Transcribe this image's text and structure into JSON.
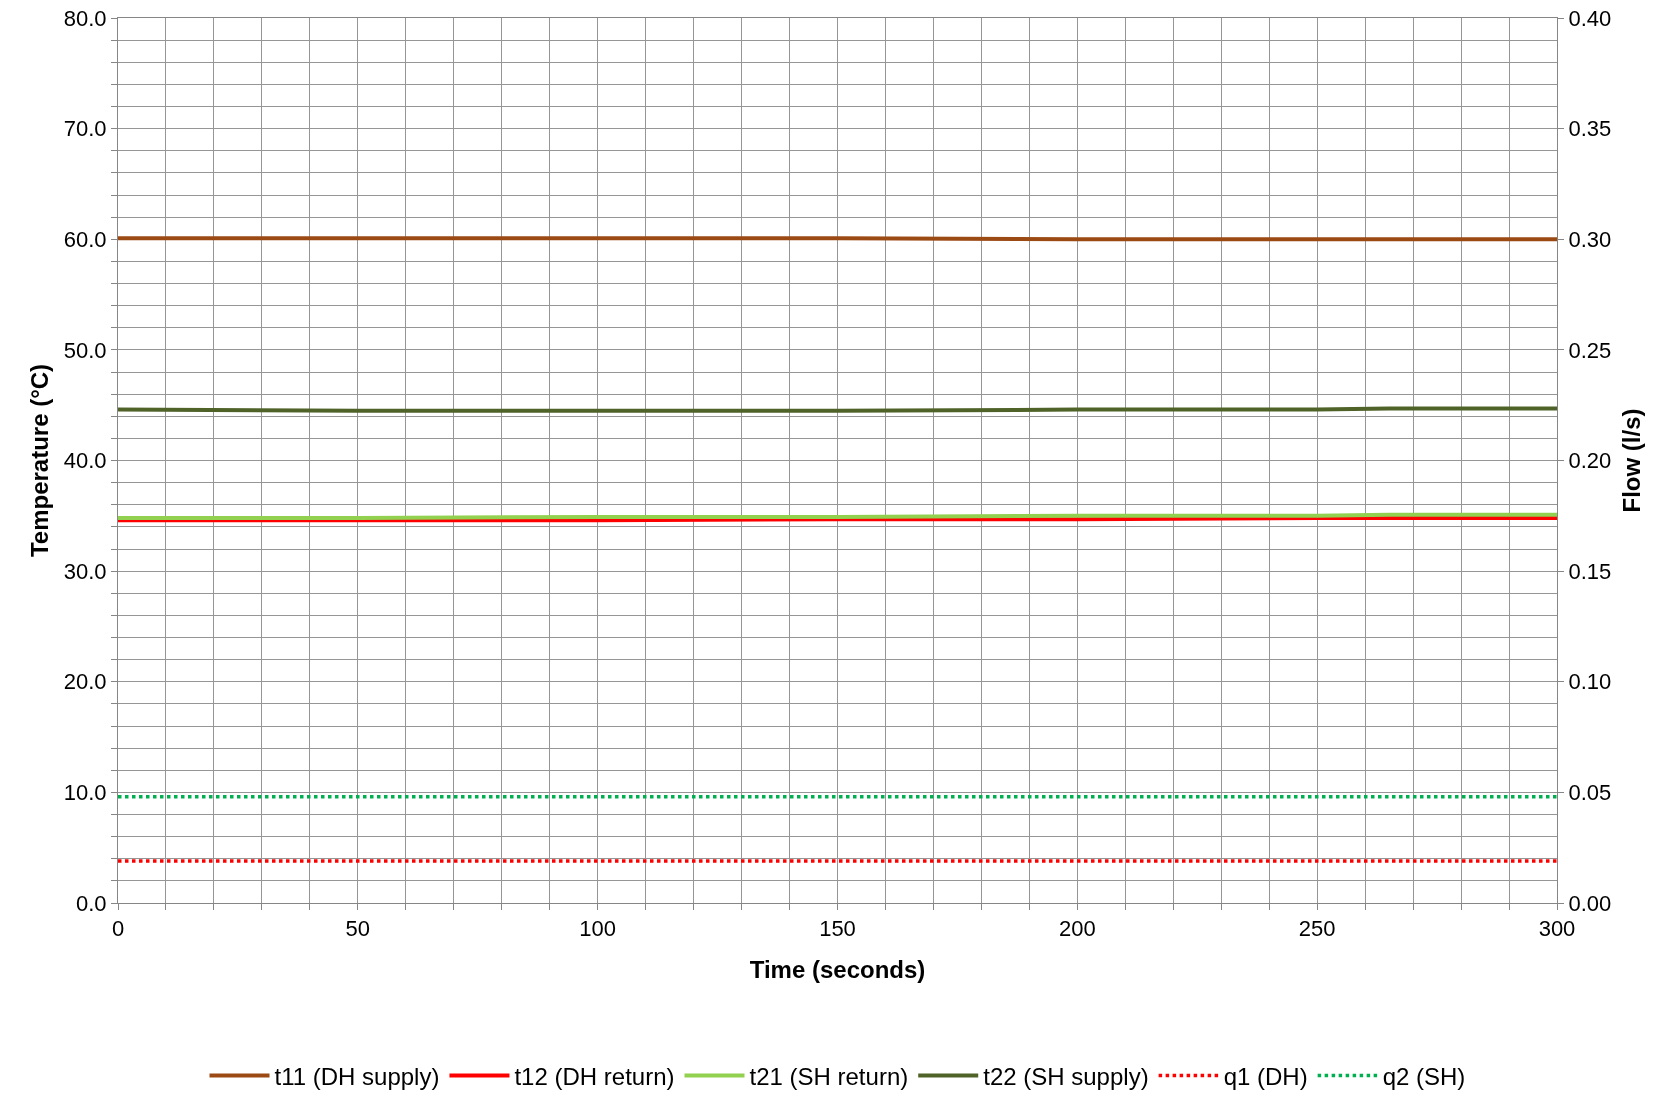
{
  "chart_data": {
    "type": "line",
    "xlabel": "Time (seconds)",
    "ylabel": "Temperature (°C)",
    "y2label": "Flow (l/s)",
    "x": [
      0,
      50,
      100,
      150,
      200,
      250,
      265,
      300
    ],
    "series": [
      {
        "name": "t11 (DH supply)",
        "color": "#9c4a14",
        "values": [
          60.1,
          60.1,
          60.1,
          60.1,
          60.0,
          60.0,
          60.0,
          60.0
        ]
      },
      {
        "name": "t12 (DH return)",
        "color": "#ff0000",
        "values": [
          34.6,
          34.6,
          34.6,
          34.7,
          34.7,
          34.8,
          34.8,
          34.8
        ]
      },
      {
        "name": "t21 (SH return)",
        "color": "#92d050",
        "values": [
          34.8,
          34.8,
          34.9,
          34.9,
          35.0,
          35.0,
          35.1,
          35.1
        ]
      },
      {
        "name": "t22 (SH supply)",
        "color": "#4f6228",
        "values": [
          44.6,
          44.5,
          44.5,
          44.5,
          44.6,
          44.6,
          44.7,
          44.7
        ]
      },
      {
        "name": "q1 (DH)",
        "color": "#ff0000",
        "line_style": "dotted",
        "axis": "y2",
        "values": [
          0.019,
          0.019,
          0.019,
          0.019,
          0.019,
          0.019,
          0.019,
          0.019
        ]
      },
      {
        "name": "q2 (SH)",
        "color": "#00b050",
        "line_style": "dotted",
        "axis": "y2",
        "values": [
          0.048,
          0.048,
          0.048,
          0.048,
          0.048,
          0.048,
          0.048,
          0.048
        ]
      }
    ],
    "xlim": [
      0,
      300
    ],
    "xticks": [
      0,
      {
        "value": 10,
        "label": null
      },
      {
        "value": 20,
        "label": null
      },
      {
        "value": 30,
        "label": null
      },
      {
        "value": 40,
        "label": null
      },
      50,
      {
        "value": 60,
        "label": null
      },
      {
        "value": 70,
        "label": null
      },
      {
        "value": 80,
        "label": null
      },
      {
        "value": 90,
        "label": null
      },
      100,
      {
        "value": 110,
        "label": null
      },
      {
        "value": 120,
        "label": null
      },
      {
        "value": 130,
        "label": null
      },
      {
        "value": 140,
        "label": null
      },
      150,
      {
        "value": 160,
        "label": null
      },
      {
        "value": 170,
        "label": null
      },
      {
        "value": 180,
        "label": null
      },
      {
        "value": 190,
        "label": null
      },
      200,
      {
        "value": 210,
        "label": null
      },
      {
        "value": 220,
        "label": null
      },
      {
        "value": 230,
        "label": null
      },
      {
        "value": 240,
        "label": null
      },
      250,
      {
        "value": 260,
        "label": null
      },
      {
        "value": 270,
        "label": null
      },
      {
        "value": 280,
        "label": null
      },
      {
        "value": 290,
        "label": null
      },
      300
    ],
    "ylim": [
      0,
      80
    ],
    "yticks": [
      {
        "value": 0,
        "label": "0.0"
      },
      {
        "value": 2,
        "label": null
      },
      {
        "value": 4,
        "label": null
      },
      {
        "value": 6,
        "label": null
      },
      {
        "value": 8,
        "label": null
      },
      {
        "value": 10,
        "label": "10.0"
      },
      {
        "value": 12,
        "label": null
      },
      {
        "value": 14,
        "label": null
      },
      {
        "value": 16,
        "label": null
      },
      {
        "value": 18,
        "label": null
      },
      {
        "value": 20,
        "label": "20.0"
      },
      {
        "value": 22,
        "label": null
      },
      {
        "value": 24,
        "label": null
      },
      {
        "value": 26,
        "label": null
      },
      {
        "value": 28,
        "label": null
      },
      {
        "value": 30,
        "label": "30.0"
      },
      {
        "value": 32,
        "label": null
      },
      {
        "value": 34,
        "label": null
      },
      {
        "value": 36,
        "label": null
      },
      {
        "value": 38,
        "label": null
      },
      {
        "value": 40,
        "label": "40.0"
      },
      {
        "value": 42,
        "label": null
      },
      {
        "value": 44,
        "label": null
      },
      {
        "value": 46,
        "label": null
      },
      {
        "value": 48,
        "label": null
      },
      {
        "value": 50,
        "label": "50.0"
      },
      {
        "value": 52,
        "label": null
      },
      {
        "value": 54,
        "label": null
      },
      {
        "value": 56,
        "label": null
      },
      {
        "value": 58,
        "label": null
      },
      {
        "value": 60,
        "label": "60.0"
      },
      {
        "value": 62,
        "label": null
      },
      {
        "value": 64,
        "label": null
      },
      {
        "value": 66,
        "label": null
      },
      {
        "value": 68,
        "label": null
      },
      {
        "value": 70,
        "label": "70.0"
      },
      {
        "value": 72,
        "label": null
      },
      {
        "value": 74,
        "label": null
      },
      {
        "value": 76,
        "label": null
      },
      {
        "value": 78,
        "label": null
      },
      {
        "value": 80,
        "label": "80.0"
      }
    ],
    "y2lim": [
      0,
      0.4
    ],
    "y2ticks": [
      {
        "value": 0,
        "label": "0.00"
      },
      {
        "value": 0.05,
        "label": "0.05"
      },
      {
        "value": 0.1,
        "label": "0.10"
      },
      {
        "value": 0.15,
        "label": "0.15"
      },
      {
        "value": 0.2,
        "label": "0.20"
      },
      {
        "value": 0.25,
        "label": "0.25"
      },
      {
        "value": 0.3,
        "label": "0.30"
      },
      {
        "value": 0.35,
        "label": "0.35"
      },
      {
        "value": 0.4,
        "label": "0.40"
      }
    ],
    "grid": true,
    "legend": "bottom",
    "marker": "none"
  }
}
